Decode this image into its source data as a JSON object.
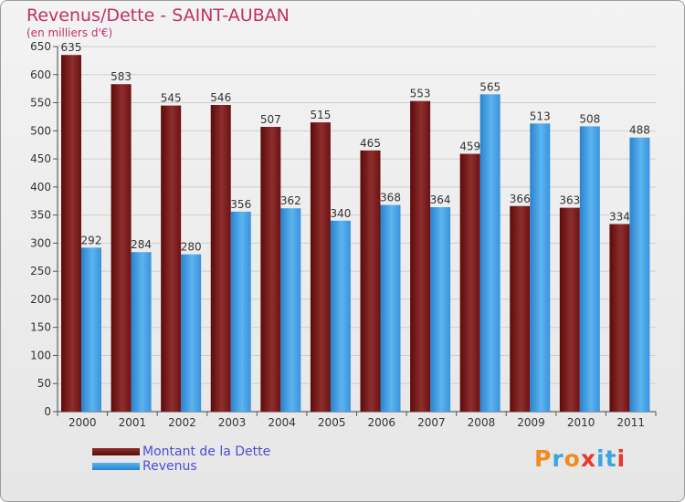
{
  "chart_data": {
    "type": "bar",
    "title": "Revenus/Dette - SAINT-AUBAN",
    "subtitle": "(en milliers d'€)",
    "categories": [
      "2000",
      "2001",
      "2002",
      "2003",
      "2004",
      "2005",
      "2006",
      "2007",
      "2008",
      "2009",
      "2010",
      "2011"
    ],
    "series": [
      {
        "name": "Montant de la Dette",
        "color": "#7a1a1a",
        "values": [
          635,
          583,
          545,
          546,
          507,
          515,
          465,
          553,
          459,
          366,
          363,
          334
        ]
      },
      {
        "name": "Revenus",
        "color": "#3d98e0",
        "values": [
          292,
          284,
          280,
          356,
          362,
          340,
          368,
          364,
          565,
          513,
          508,
          488
        ]
      }
    ],
    "ylim": [
      0,
      650
    ],
    "yticks": [
      0,
      50,
      100,
      150,
      200,
      250,
      300,
      350,
      400,
      450,
      500,
      550,
      600,
      650
    ],
    "grid": true,
    "legend_position": "bottom-left"
  },
  "legend": {
    "debt_label": "Montant de la Dette",
    "revenue_label": "Revenus"
  },
  "logo": {
    "text": "Proxiti",
    "colors": [
      "#f08c1e",
      "#37a6de",
      "#f08c1e",
      "#e8382e",
      "#37a6de",
      "#37a6de",
      "#e8382e"
    ]
  },
  "colors": {
    "debt_dark": "#5c0a0a",
    "debt_light": "#9a3434",
    "revenue_dark": "#2a82cf",
    "revenue_light": "#5cb4f0",
    "title": "#c0306a",
    "legend_text": "#4c4cd6"
  }
}
